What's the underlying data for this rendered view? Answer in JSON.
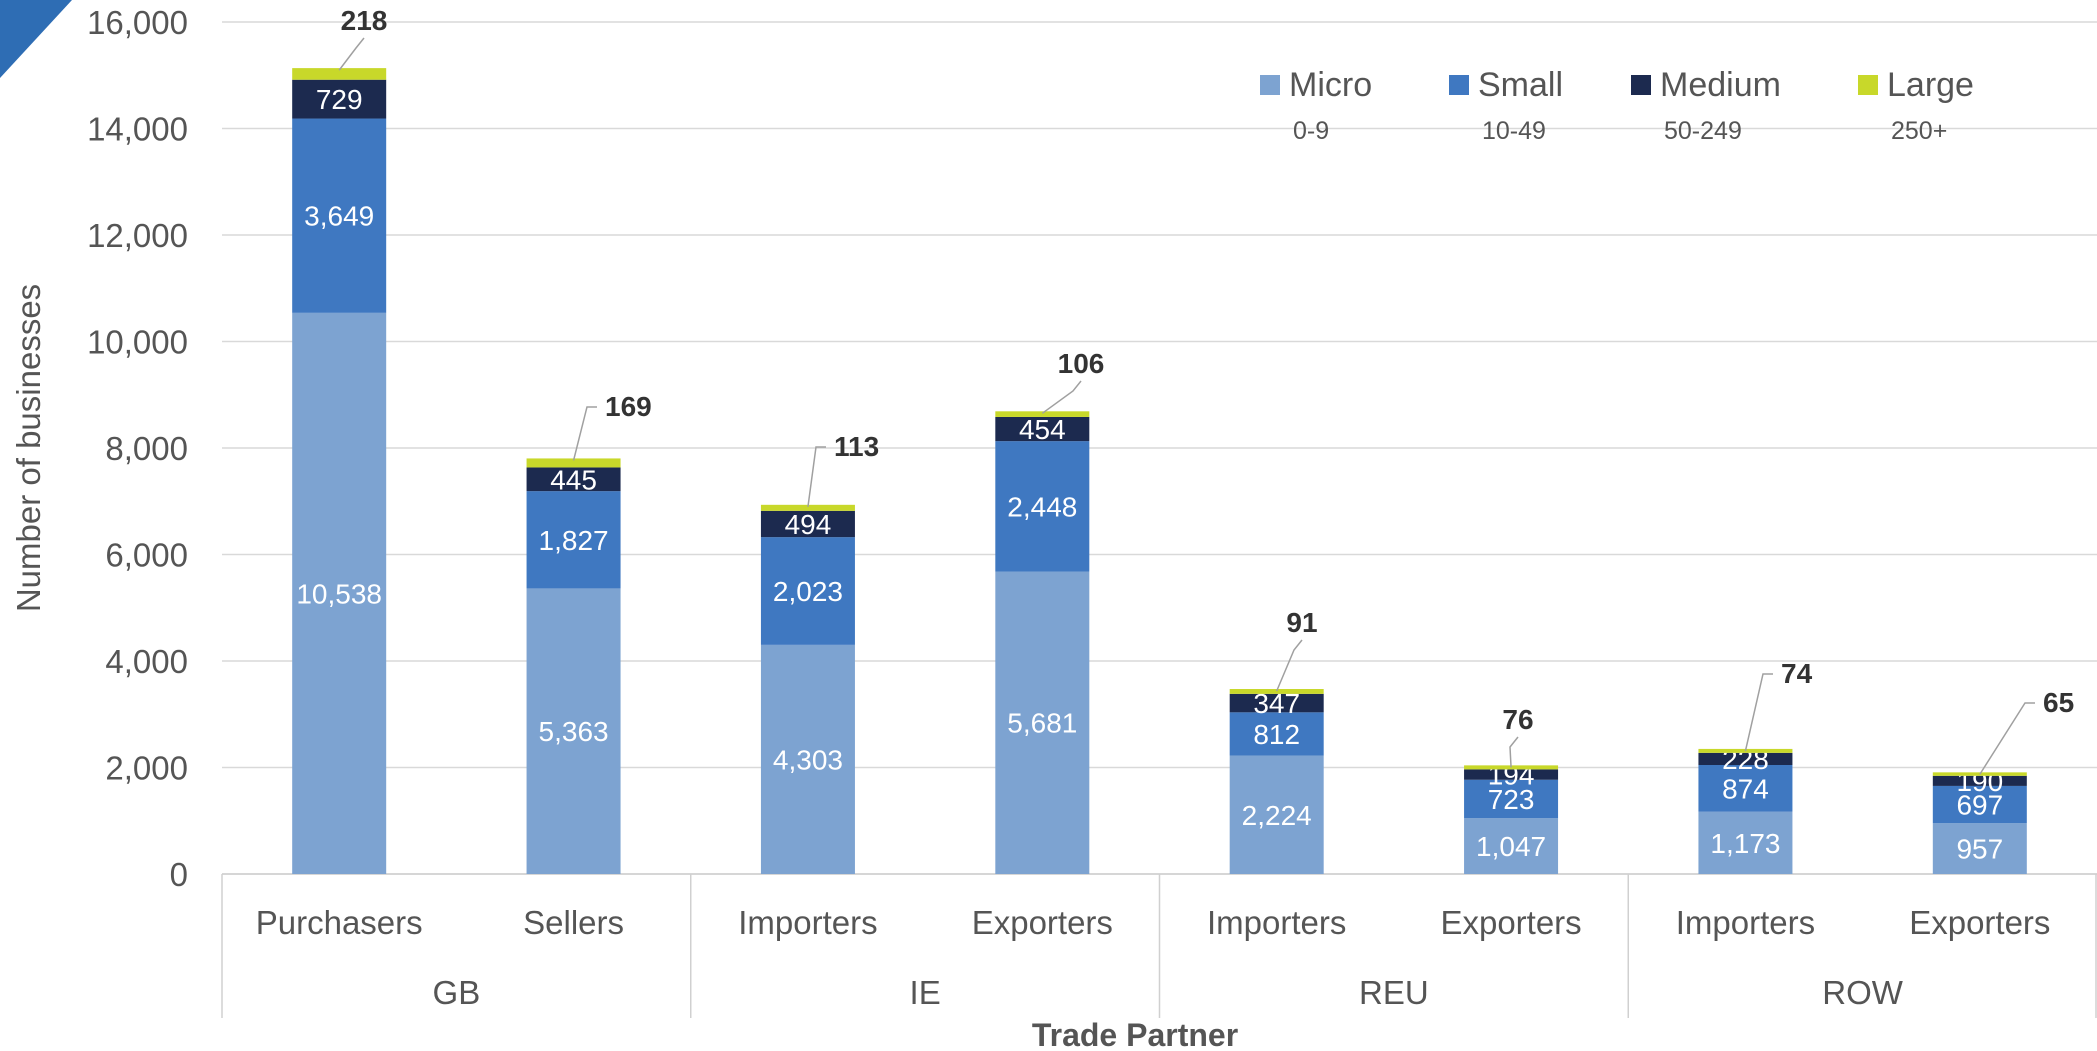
{
  "chart_data": {
    "type": "bar",
    "stacked": true,
    "title": "",
    "xlabel": "Trade Partner",
    "ylabel": "Number of businesses",
    "ylim": [
      0,
      16000
    ],
    "yticks": [
      0,
      2000,
      4000,
      6000,
      8000,
      10000,
      12000,
      14000,
      16000
    ],
    "ytick_labels": [
      "0",
      "2,000",
      "4,000",
      "6,000",
      "8,000",
      "10,000",
      "12,000",
      "14,000",
      "16,000"
    ],
    "grid": true,
    "legend_position": "top-right",
    "groups": [
      {
        "label": "GB",
        "categories": [
          "Purchasers",
          "Sellers"
        ]
      },
      {
        "label": "IE",
        "categories": [
          "Importers",
          "Exporters"
        ]
      },
      {
        "label": "REU",
        "categories": [
          "Importers",
          "Exporters"
        ]
      },
      {
        "label": "ROW",
        "categories": [
          "Importers",
          "Exporters"
        ]
      }
    ],
    "categories": [
      "Purchasers",
      "Sellers",
      "Importers",
      "Exporters",
      "Importers",
      "Exporters",
      "Importers",
      "Exporters"
    ],
    "series": [
      {
        "name": "Micro",
        "range": "0-9",
        "color": "#7da3d1",
        "values": [
          10538,
          5363,
          4303,
          5681,
          2224,
          1047,
          1173,
          957
        ],
        "labels": [
          "10,538",
          "5,363",
          "4,303",
          "5,681",
          "2,224",
          "1,047",
          "1,173",
          "957"
        ]
      },
      {
        "name": "Small",
        "range": "10-49",
        "color": "#3f78c1",
        "values": [
          3649,
          1827,
          2023,
          2448,
          812,
          723,
          874,
          697
        ],
        "labels": [
          "3,649",
          "1,827",
          "2,023",
          "2,448",
          "812",
          "723",
          "874",
          "697"
        ]
      },
      {
        "name": "Medium",
        "range": "50-249",
        "color": "#1c2a4f",
        "values": [
          729,
          445,
          494,
          454,
          347,
          194,
          228,
          190
        ],
        "labels": [
          "729",
          "445",
          "494",
          "454",
          "347",
          "194",
          "228",
          "190"
        ]
      },
      {
        "name": "Large",
        "range": "250+",
        "color": "#c8d82a",
        "values": [
          218,
          169,
          113,
          106,
          91,
          76,
          74,
          65
        ],
        "labels": [
          "218",
          "169",
          "113",
          "106",
          "91",
          "76",
          "74",
          "65"
        ]
      }
    ],
    "colors": {
      "axis_text": "#555555",
      "grid": "#d9d9d9",
      "corner_accent": "#2e6db4"
    }
  }
}
